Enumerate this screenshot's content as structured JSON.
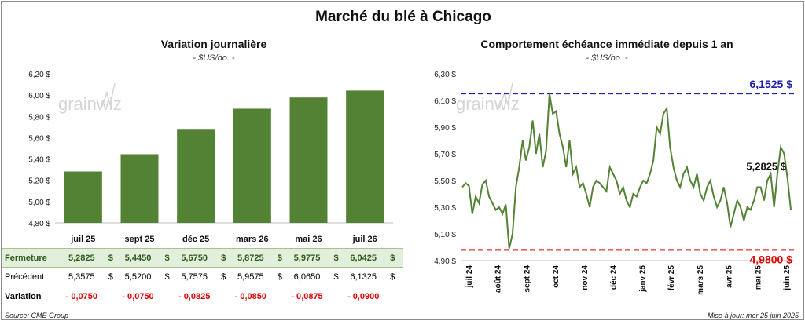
{
  "title": "Marché du blé à Chicago",
  "logo": "grainwiz",
  "source": "Source: CME Group",
  "updated": "Mise à jour: mer 25 juin 2025",
  "chart_data": [
    {
      "type": "bar",
      "title": "Variation journalière",
      "unit": "- $US/bo. -",
      "categories": [
        "juil 25",
        "sept 25",
        "déc 25",
        "mars 26",
        "mai 26",
        "juil 26"
      ],
      "values": [
        5.2825,
        5.445,
        5.675,
        5.8725,
        5.9775,
        6.0425
      ],
      "ylim": [
        4.8,
        6.2
      ],
      "yticks": [
        "4,80 $",
        "5,00 $",
        "5,20 $",
        "5,40 $",
        "5,60 $",
        "5,80 $",
        "6,00 $",
        "6,20 $"
      ],
      "grid": false,
      "bar_color": "#548235"
    },
    {
      "type": "line",
      "title": "Comportement échéance immédiate depuis 1 an",
      "unit": "- $US/bo. -",
      "x_labels": [
        "juil 24",
        "août 24",
        "sept 24",
        "oct 24",
        "nov 24",
        "déc 24",
        "janv 25",
        "févr 25",
        "mars 25",
        "avr 25",
        "mai 25",
        "juin 25"
      ],
      "values": [
        5.45,
        5.48,
        5.46,
        5.25,
        5.38,
        5.33,
        5.47,
        5.5,
        5.38,
        5.33,
        5.28,
        5.3,
        5.25,
        5.32,
        4.99,
        5.1,
        5.45,
        5.6,
        5.8,
        5.65,
        5.75,
        5.95,
        5.7,
        5.85,
        5.6,
        5.72,
        6.15,
        6.0,
        6.02,
        5.85,
        5.75,
        5.6,
        5.8,
        5.55,
        5.6,
        5.45,
        5.48,
        5.4,
        5.3,
        5.45,
        5.5,
        5.48,
        5.45,
        5.42,
        5.6,
        5.55,
        5.5,
        5.4,
        5.45,
        5.35,
        5.3,
        5.4,
        5.38,
        5.45,
        5.5,
        5.48,
        5.55,
        5.65,
        5.9,
        5.85,
        6.0,
        6.04,
        5.75,
        5.6,
        5.5,
        5.45,
        5.55,
        5.6,
        5.5,
        5.45,
        5.55,
        5.4,
        5.35,
        5.45,
        5.5,
        5.38,
        5.3,
        5.35,
        5.45,
        5.33,
        5.15,
        5.25,
        5.35,
        5.3,
        5.2,
        5.3,
        5.28,
        5.35,
        5.45,
        5.45,
        5.35,
        5.5,
        5.55,
        5.3,
        5.55,
        5.75,
        5.7,
        5.52,
        5.2825
      ],
      "current_value_label": "5,2825 $",
      "high": 6.1525,
      "high_label": "6,1525 $",
      "low": 4.98,
      "low_label": "4,9800 $",
      "ylim": [
        4.9,
        6.3
      ],
      "yticks": [
        "4,90 $",
        "5,10 $",
        "5,30 $",
        "5,50 $",
        "5,70 $",
        "5,90 $",
        "6,10 $",
        "6,30 $"
      ],
      "line_color": "#548235",
      "high_color": "#1f1fa8",
      "low_color": "#e00000"
    }
  ],
  "table": {
    "rows": [
      {
        "label": "Fermeture",
        "values": [
          "5,2825",
          "5,4450",
          "5,6750",
          "5,8725",
          "5,9775",
          "6,0425"
        ],
        "suffix": "$"
      },
      {
        "label": "Précédent",
        "values": [
          "5,3575",
          "5,5200",
          "5,7575",
          "5,9575",
          "6,0650",
          "6,1325"
        ],
        "suffix": "$"
      },
      {
        "label": "Variation",
        "values": [
          "- 0,0750",
          "- 0,0750",
          "- 0,0825",
          "- 0,0850",
          "- 0,0875",
          "- 0,0900"
        ],
        "suffix": ""
      }
    ]
  }
}
